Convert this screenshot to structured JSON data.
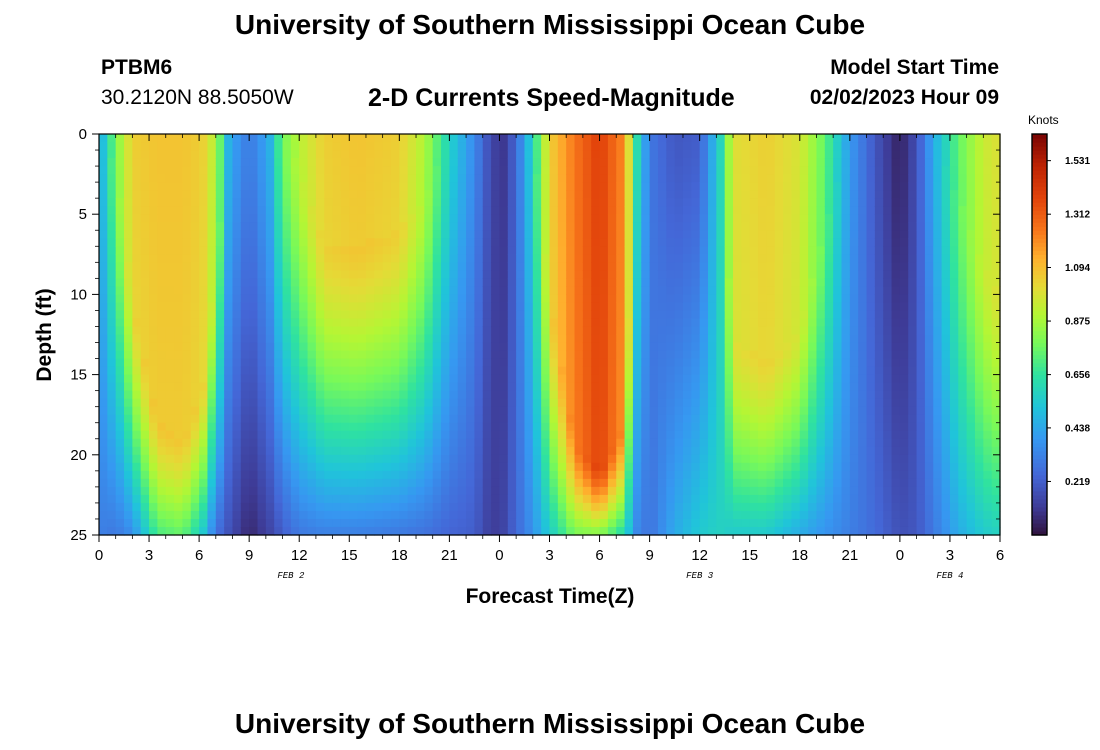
{
  "title": "University of Southern Mississippi Ocean Cube",
  "bottom_title": "University of Southern Mississippi Ocean Cube",
  "station": {
    "name": "PTBM6",
    "coords": "30.2120N  88.5050W"
  },
  "subtitle": "2-D Currents Speed-Magnitude",
  "model_start": {
    "label": "Model Start Time",
    "value": "02/02/2023 Hour 09"
  },
  "chart_data": {
    "type": "heatmap",
    "title": "2-D Currents Speed-Magnitude",
    "xlabel": "Forecast Time(Z)",
    "ylabel": "Depth (ft)",
    "xlim": [
      0,
      54
    ],
    "ylim": [
      25,
      0
    ],
    "x_tick_values": [
      0,
      3,
      6,
      9,
      12,
      15,
      18,
      21,
      24,
      27,
      30,
      33,
      36,
      39,
      42,
      45,
      48,
      51,
      54
    ],
    "x_tick_labels": [
      "0",
      "3",
      "6",
      "9",
      "12",
      "15",
      "18",
      "21",
      "0",
      "3",
      "6",
      "9",
      "12",
      "15",
      "18",
      "21",
      "0",
      "3",
      "6"
    ],
    "y_tick_values": [
      0,
      5,
      10,
      15,
      20,
      25
    ],
    "y_tick_labels": [
      "0",
      "5",
      "10",
      "15",
      "20",
      "25"
    ],
    "date_labels": [
      {
        "text": "FEB 2",
        "x": 11.5
      },
      {
        "text": "FEB 3",
        "x": 36.0
      },
      {
        "text": "FEB 4",
        "x": 51.0
      }
    ],
    "colorbar": {
      "title": "Knots",
      "min": 0,
      "max": 1.64,
      "tick_values": [
        0.219,
        0.438,
        0.656,
        0.875,
        1.094,
        1.312,
        1.531
      ],
      "tick_labels": [
        "0.219",
        "0.438",
        "0.656",
        "0.875",
        "1.094",
        "1.312",
        "1.531"
      ]
    },
    "columns": [
      {
        "t": 0.0,
        "top": 0.42,
        "bot": 0.32,
        "bd": 0
      },
      {
        "t": 1.0,
        "top": 0.8,
        "bot": 0.3,
        "bd": 2
      },
      {
        "t": 2.0,
        "top": 1.05,
        "bot": 0.36,
        "bd": 10
      },
      {
        "t": 3.5,
        "top": 1.08,
        "bot": 0.7,
        "bd": 18
      },
      {
        "t": 5.0,
        "top": 1.08,
        "bot": 0.75,
        "bd": 19
      },
      {
        "t": 6.2,
        "top": 1.05,
        "bot": 0.55,
        "bd": 16
      },
      {
        "t": 7.0,
        "top": 0.9,
        "bot": 0.28,
        "bd": 8
      },
      {
        "t": 7.8,
        "top": 0.45,
        "bot": 0.18,
        "bd": 0
      },
      {
        "t": 9.0,
        "top": 0.3,
        "bot": 0.06,
        "bd": 0
      },
      {
        "t": 10.2,
        "top": 0.45,
        "bot": 0.14,
        "bd": 0
      },
      {
        "t": 11.0,
        "top": 0.78,
        "bot": 0.22,
        "bd": 0
      },
      {
        "t": 12.0,
        "top": 0.92,
        "bot": 0.3,
        "bd": 2
      },
      {
        "t": 13.5,
        "top": 1.05,
        "bot": 0.32,
        "bd": 7
      },
      {
        "t": 15.5,
        "top": 1.08,
        "bot": 0.32,
        "bd": 7
      },
      {
        "t": 18.0,
        "top": 1.05,
        "bot": 0.3,
        "bd": 6
      },
      {
        "t": 19.5,
        "top": 0.9,
        "bot": 0.28,
        "bd": 4
      },
      {
        "t": 21.0,
        "top": 0.58,
        "bot": 0.24,
        "bd": 0
      },
      {
        "t": 22.5,
        "top": 0.35,
        "bot": 0.22,
        "bd": 0
      },
      {
        "t": 23.5,
        "top": 0.15,
        "bot": 0.12,
        "bd": 0
      },
      {
        "t": 24.2,
        "top": 0.1,
        "bot": 0.14,
        "bd": 0
      },
      {
        "t": 25.0,
        "top": 0.25,
        "bot": 0.25,
        "bd": 0
      },
      {
        "t": 26.0,
        "top": 0.6,
        "bot": 0.38,
        "bd": 0
      },
      {
        "t": 27.0,
        "top": 1.05,
        "bot": 0.55,
        "bd": 10
      },
      {
        "t": 28.5,
        "top": 1.25,
        "bot": 0.78,
        "bd": 19
      },
      {
        "t": 30.0,
        "top": 1.4,
        "bot": 0.8,
        "bd": 21
      },
      {
        "t": 31.5,
        "top": 1.2,
        "bot": 0.6,
        "bd": 18
      },
      {
        "t": 32.2,
        "top": 0.65,
        "bot": 0.35,
        "bd": 0
      },
      {
        "t": 33.0,
        "top": 0.3,
        "bot": 0.28,
        "bd": 0
      },
      {
        "t": 34.5,
        "top": 0.2,
        "bot": 0.45,
        "bd": 0
      },
      {
        "t": 36.0,
        "top": 0.22,
        "bot": 0.55,
        "bd": 0
      },
      {
        "t": 37.2,
        "top": 0.58,
        "bot": 0.58,
        "bd": 0
      },
      {
        "t": 38.0,
        "top": 1.0,
        "bot": 0.55,
        "bd": 13
      },
      {
        "t": 40.0,
        "top": 1.05,
        "bot": 0.55,
        "bd": 14
      },
      {
        "t": 42.0,
        "top": 0.98,
        "bot": 0.45,
        "bd": 12
      },
      {
        "t": 43.5,
        "top": 0.75,
        "bot": 0.38,
        "bd": 6
      },
      {
        "t": 45.0,
        "top": 0.4,
        "bot": 0.32,
        "bd": 0
      },
      {
        "t": 46.5,
        "top": 0.2,
        "bot": 0.26,
        "bd": 0
      },
      {
        "t": 48.0,
        "top": 0.04,
        "bot": 0.18,
        "bd": 0
      },
      {
        "t": 49.0,
        "top": 0.18,
        "bot": 0.2,
        "bd": 0
      },
      {
        "t": 50.0,
        "top": 0.45,
        "bot": 0.3,
        "bd": 0
      },
      {
        "t": 51.5,
        "top": 0.75,
        "bot": 0.45,
        "bd": 4
      },
      {
        "t": 53.0,
        "top": 0.95,
        "bot": 0.55,
        "bd": 8
      },
      {
        "t": 54.0,
        "top": 1.0,
        "bot": 0.58,
        "bd": 10
      }
    ]
  }
}
